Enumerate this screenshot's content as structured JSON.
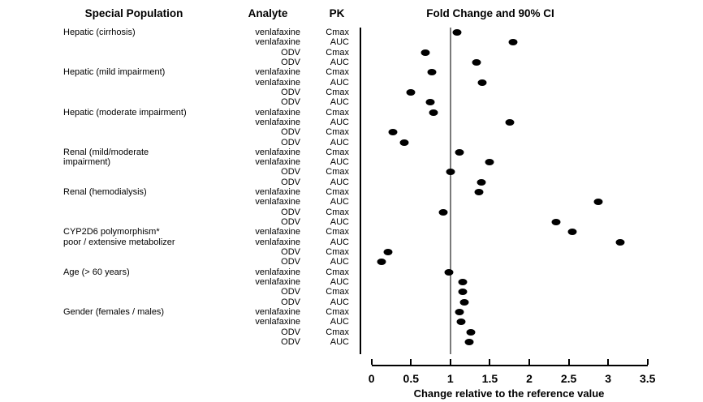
{
  "figure": {
    "headers": {
      "special_population": "Special Population",
      "analyte": "Analyte",
      "pk": "PK",
      "fold_change": "Fold Change and 90% CI"
    }
  },
  "chart_data": {
    "type": "scatter",
    "title": "Fold Change and 90% CI",
    "xlabel": "Change relative to the reference value",
    "xlim": [
      0,
      3.5
    ],
    "x_ticks": [
      "0",
      "0.5",
      "1",
      "1.5",
      "2",
      "2.5",
      "3",
      "3.5"
    ],
    "x_tick_values": [
      0,
      0.5,
      1,
      1.5,
      2,
      2.5,
      3,
      3.5
    ],
    "reference_line_x": 1,
    "grid": false,
    "legend": "none",
    "marker": {
      "shape": "filled-ellipse",
      "color": "#000000"
    },
    "columns": [
      "Special Population",
      "Analyte",
      "PK",
      "Fold Change (point estimate)"
    ],
    "rows": [
      {
        "population": "Hepatic (cirrhosis)",
        "analyte": "venlafaxine",
        "pk": "Cmax",
        "fold_change": 1.08
      },
      {
        "population": "",
        "analyte": "venlafaxine",
        "pk": "AUC",
        "fold_change": 1.79
      },
      {
        "population": "",
        "analyte": "ODV",
        "pk": "Cmax",
        "fold_change": 0.68
      },
      {
        "population": "",
        "analyte": "ODV",
        "pk": "AUC",
        "fold_change": 1.33
      },
      {
        "population": "Hepatic (mild impairment)",
        "analyte": "venlafaxine",
        "pk": "Cmax",
        "fold_change": 0.77
      },
      {
        "population": "",
        "analyte": "venlafaxine",
        "pk": "AUC",
        "fold_change": 1.4
      },
      {
        "population": "",
        "analyte": "ODV",
        "pk": "Cmax",
        "fold_change": 0.5
      },
      {
        "population": "",
        "analyte": "ODV",
        "pk": "AUC",
        "fold_change": 0.74
      },
      {
        "population": "Hepatic (moderate impairment)",
        "analyte": "venlafaxine",
        "pk": "Cmax",
        "fold_change": 0.79
      },
      {
        "population": "",
        "analyte": "venlafaxine",
        "pk": "AUC",
        "fold_change": 1.75
      },
      {
        "population": "",
        "analyte": "ODV",
        "pk": "Cmax",
        "fold_change": 0.27
      },
      {
        "population": "",
        "analyte": "ODV",
        "pk": "AUC",
        "fold_change": 0.42
      },
      {
        "population": "Renal (mild/moderate",
        "analyte": "venlafaxine",
        "pk": "Cmax",
        "fold_change": 1.12
      },
      {
        "population": "impairment)",
        "analyte": "venlafaxine",
        "pk": "AUC",
        "fold_change": 1.5
      },
      {
        "population": "",
        "analyte": "ODV",
        "pk": "Cmax",
        "fold_change": 1.0
      },
      {
        "population": "",
        "analyte": "ODV",
        "pk": "AUC",
        "fold_change": 1.39
      },
      {
        "population": "Renal (hemodialysis)",
        "analyte": "venlafaxine",
        "pk": "Cmax",
        "fold_change": 1.36
      },
      {
        "population": "",
        "analyte": "venlafaxine",
        "pk": "AUC",
        "fold_change": 2.88
      },
      {
        "population": "",
        "analyte": "ODV",
        "pk": "Cmax",
        "fold_change": 0.91
      },
      {
        "population": "",
        "analyte": "ODV",
        "pk": "AUC",
        "fold_change": 2.34
      },
      {
        "population": "CYP2D6 polymorphism*",
        "analyte": "venlafaxine",
        "pk": "Cmax",
        "fold_change": 2.55
      },
      {
        "population": "poor / extensive metabolizer",
        "analyte": "venlafaxine",
        "pk": "AUC",
        "fold_change": 3.15
      },
      {
        "population": "",
        "analyte": "ODV",
        "pk": "Cmax",
        "fold_change": 0.21
      },
      {
        "population": "",
        "analyte": "ODV",
        "pk": "AUC",
        "fold_change": 0.13
      },
      {
        "population": "Age (> 60 years)",
        "analyte": "venlafaxine",
        "pk": "Cmax",
        "fold_change": 0.98
      },
      {
        "population": "",
        "analyte": "venlafaxine",
        "pk": "AUC",
        "fold_change": 1.16
      },
      {
        "population": "",
        "analyte": "ODV",
        "pk": "Cmax",
        "fold_change": 1.16
      },
      {
        "population": "",
        "analyte": "ODV",
        "pk": "AUC",
        "fold_change": 1.18
      },
      {
        "population": "Gender (females / males)",
        "analyte": "venlafaxine",
        "pk": "Cmax",
        "fold_change": 1.12
      },
      {
        "population": "",
        "analyte": "venlafaxine",
        "pk": "AUC",
        "fold_change": 1.14
      },
      {
        "population": "",
        "analyte": "ODV",
        "pk": "Cmax",
        "fold_change": 1.26
      },
      {
        "population": "",
        "analyte": "ODV",
        "pk": "AUC",
        "fold_change": 1.24
      }
    ]
  }
}
